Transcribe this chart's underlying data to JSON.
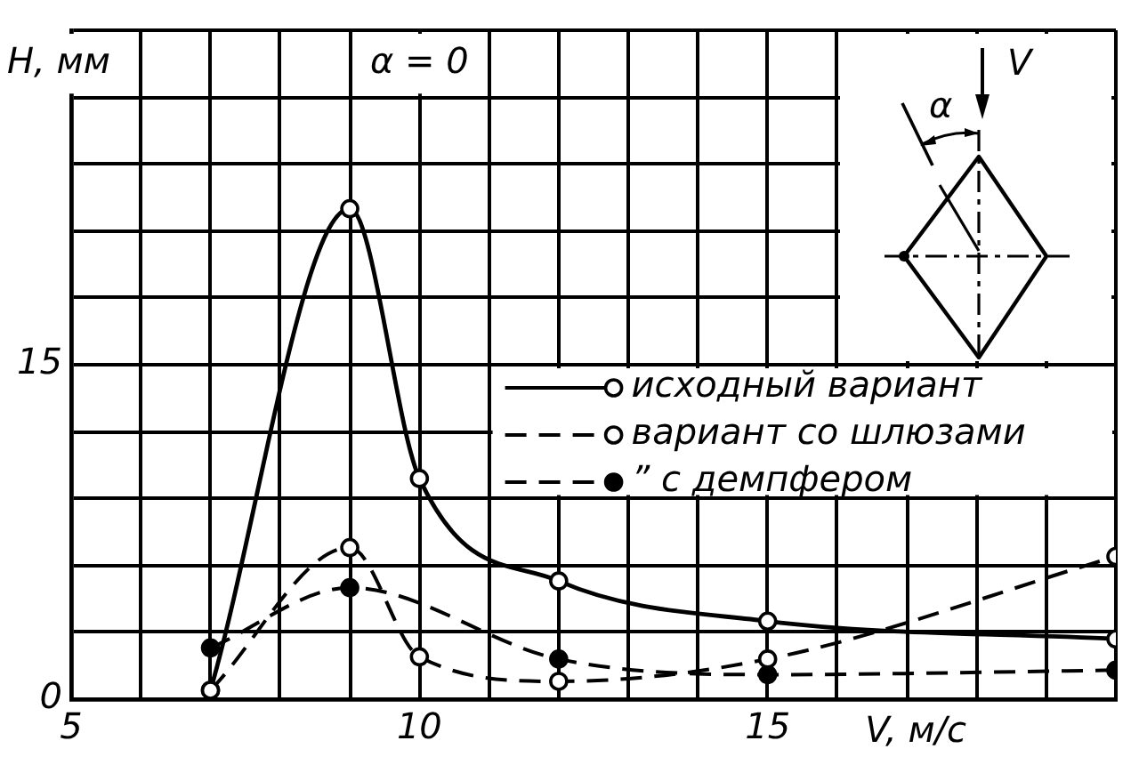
{
  "chart_data": {
    "type": "line",
    "xlabel": "V, м/с",
    "ylabel": "H, мм",
    "annotations": [
      "α = 0",
      "V",
      "α"
    ],
    "series": [
      {
        "name": "исходный вариант",
        "color": "#000000",
        "line_style": "solid",
        "x": [
          7,
          9,
          10,
          12,
          15,
          20
        ],
        "values": [
          0.4,
          22,
          9.9,
          5.3,
          3.5,
          2.7
        ]
      },
      {
        "name": "вариант со шлюзами",
        "color": "#000000",
        "line_style": "dashed",
        "x": [
          7,
          9,
          10,
          12,
          15,
          20
        ],
        "values": [
          0.4,
          6.8,
          1.9,
          0.8,
          1.8,
          6.4
        ]
      },
      {
        "name": "” с демпфером",
        "color": "#000000",
        "line_style": "dashed",
        "x": [
          7,
          9,
          12,
          15,
          20
        ],
        "values": [
          2.3,
          5.0,
          1.8,
          1.1,
          1.3
        ]
      }
    ],
    "xlim": [
      5,
      20
    ],
    "xticks": [
      5,
      {
        "value": 6,
        "label": null
      },
      {
        "value": 7,
        "label": null
      },
      {
        "value": 8,
        "label": null
      },
      {
        "value": 9,
        "label": null
      },
      10,
      {
        "value": 11,
        "label": null
      },
      {
        "value": 12,
        "label": null
      },
      {
        "value": 13,
        "label": null
      },
      {
        "value": 14,
        "label": null
      },
      15,
      {
        "value": 16,
        "label": null
      },
      {
        "value": 17,
        "label": null
      },
      {
        "value": 18,
        "label": null
      },
      {
        "value": 19,
        "label": null
      },
      {
        "value": 20,
        "label": null
      }
    ],
    "ylim": [
      0,
      30
    ],
    "yticks": [
      0,
      {
        "value": 3,
        "label": null
      },
      {
        "value": 6,
        "label": null
      },
      {
        "value": 9,
        "label": null
      },
      {
        "value": 12,
        "label": null
      },
      15,
      {
        "value": 18,
        "label": null
      },
      {
        "value": 21,
        "label": null
      },
      {
        "value": 24,
        "label": null
      },
      {
        "value": 27,
        "label": null
      },
      {
        "value": 30,
        "label": null
      }
    ],
    "grid": true,
    "legend": "right",
    "marker": "circle"
  }
}
